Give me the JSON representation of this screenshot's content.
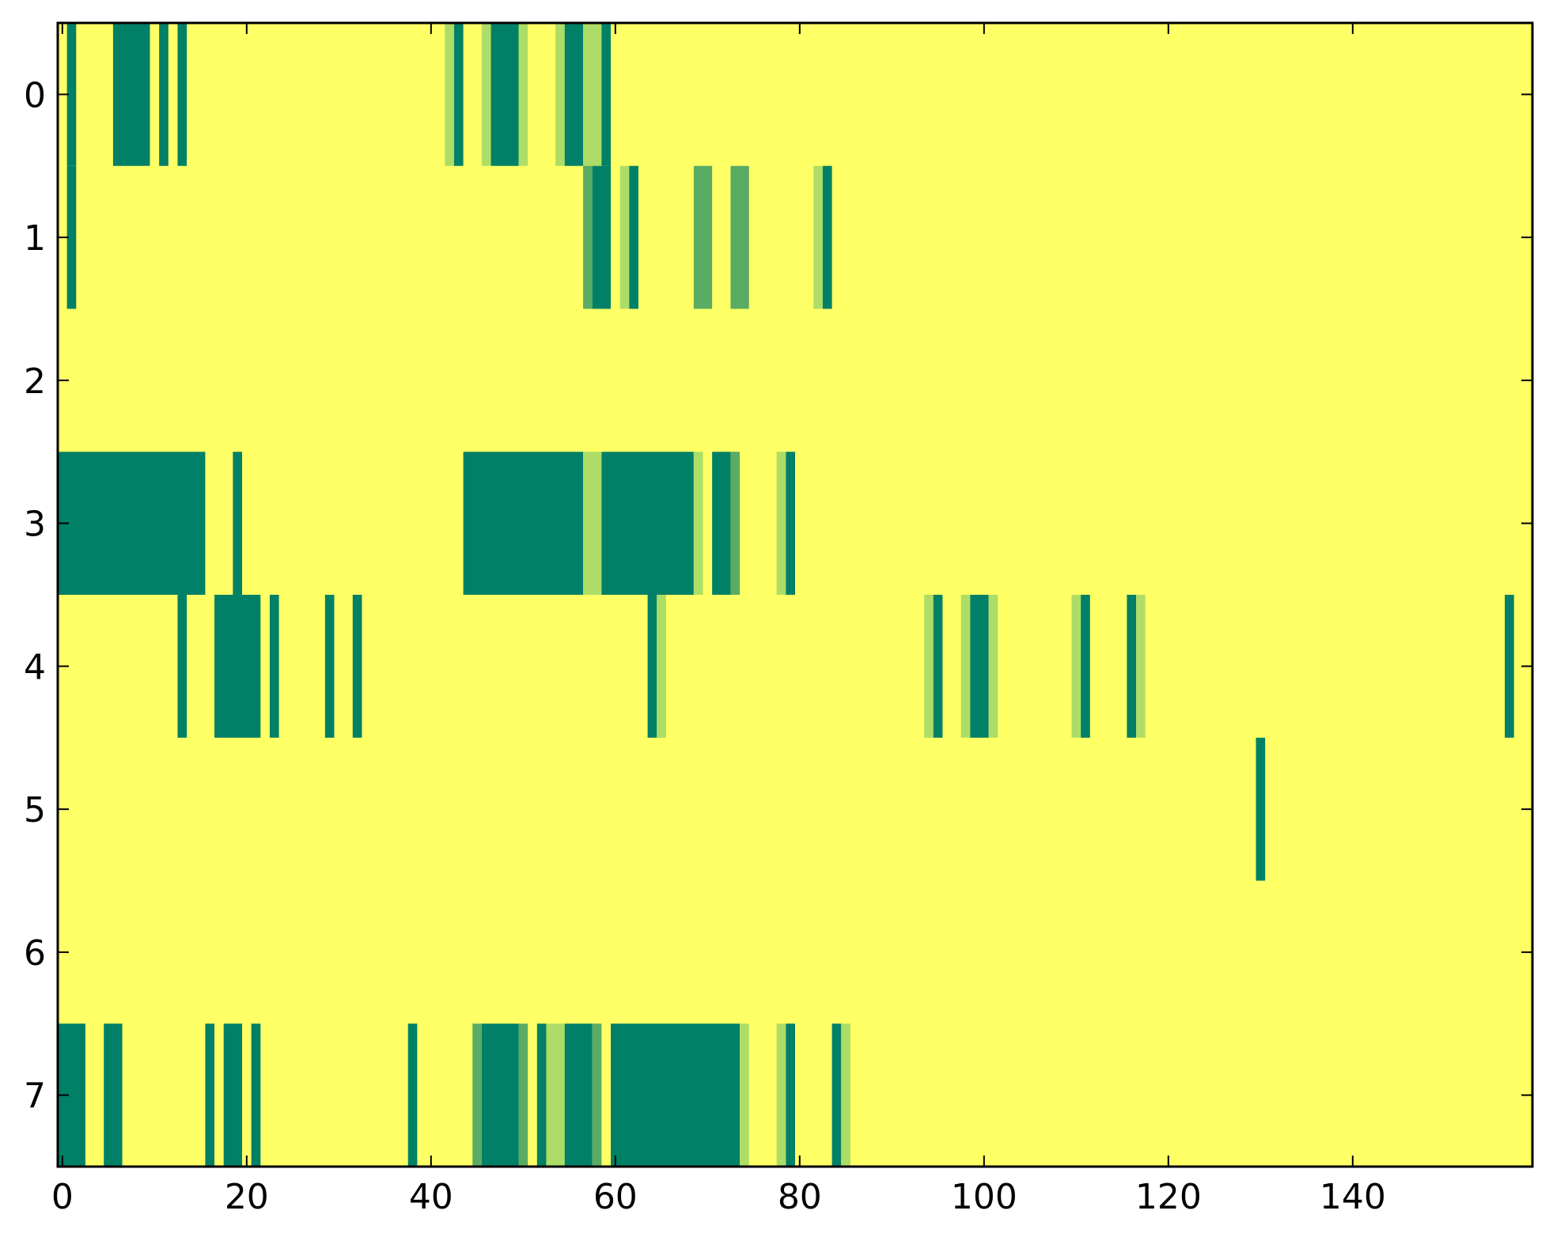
{
  "chart_data": {
    "type": "heatmap",
    "title": "",
    "xlabel": "",
    "ylabel": "",
    "xlim": [
      -0.5,
      159.5
    ],
    "ylim": [
      7.5,
      -0.5
    ],
    "x_ticks": [
      0,
      20,
      40,
      60,
      80,
      100,
      120,
      140
    ],
    "x_tick_labels": [
      "0",
      "20",
      "40",
      "60",
      "80",
      "100",
      "120",
      "140"
    ],
    "y_ticks": [
      0,
      1,
      2,
      3,
      4,
      5,
      6,
      7
    ],
    "y_tick_labels": [
      "0",
      "1",
      "2",
      "3",
      "4",
      "5",
      "6",
      "7"
    ],
    "grid": false,
    "background_value": 0,
    "colormap": {
      "0": "#ffff66",
      "1": "#addd66",
      "2": "#5aac64",
      "3": "#008066"
    },
    "columns": 160,
    "rows": [
      {
        "row": 0,
        "segments": [
          [
            1,
            1,
            3
          ],
          [
            6,
            9,
            3
          ],
          [
            11,
            11,
            3
          ],
          [
            13,
            13,
            3
          ],
          [
            42,
            42,
            1
          ],
          [
            43,
            43,
            3
          ],
          [
            46,
            46,
            1
          ],
          [
            47,
            49,
            3
          ],
          [
            50,
            50,
            1
          ],
          [
            54,
            54,
            1
          ],
          [
            55,
            56,
            3
          ],
          [
            57,
            58,
            1
          ],
          [
            59,
            59,
            3
          ]
        ]
      },
      {
        "row": 1,
        "segments": [
          [
            1,
            1,
            3
          ],
          [
            57,
            57,
            2
          ],
          [
            58,
            59,
            3
          ],
          [
            61,
            61,
            1
          ],
          [
            62,
            62,
            3
          ],
          [
            69,
            70,
            2
          ],
          [
            73,
            74,
            2
          ],
          [
            82,
            82,
            1
          ],
          [
            83,
            83,
            3
          ]
        ]
      },
      {
        "row": 2,
        "segments": []
      },
      {
        "row": 3,
        "segments": [
          [
            -0.5,
            15,
            3
          ],
          [
            19,
            19,
            3
          ],
          [
            44,
            56,
            3
          ],
          [
            57,
            58,
            1
          ],
          [
            59,
            68,
            3
          ],
          [
            69,
            69,
            1
          ],
          [
            71,
            72,
            3
          ],
          [
            73,
            73,
            2
          ],
          [
            78,
            78,
            1
          ],
          [
            79,
            79,
            3
          ]
        ]
      },
      {
        "row": 4,
        "segments": [
          [
            13,
            13,
            3
          ],
          [
            17,
            21,
            3
          ],
          [
            23,
            23,
            3
          ],
          [
            29,
            29,
            3
          ],
          [
            32,
            32,
            3
          ],
          [
            64,
            64,
            3
          ],
          [
            65,
            65,
            1
          ],
          [
            94,
            94,
            1
          ],
          [
            95,
            95,
            3
          ],
          [
            98,
            98,
            1
          ],
          [
            99,
            100,
            3
          ],
          [
            101,
            101,
            1
          ],
          [
            110,
            110,
            1
          ],
          [
            111,
            111,
            3
          ],
          [
            116,
            116,
            3
          ],
          [
            117,
            117,
            1
          ],
          [
            157,
            157,
            3
          ]
        ]
      },
      {
        "row": 5,
        "segments": [
          [
            130,
            130,
            3
          ]
        ]
      },
      {
        "row": 6,
        "segments": []
      },
      {
        "row": 7,
        "segments": [
          [
            -0.5,
            2,
            3
          ],
          [
            5,
            6,
            3
          ],
          [
            16,
            16,
            3
          ],
          [
            18,
            19,
            3
          ],
          [
            21,
            21,
            3
          ],
          [
            38,
            38,
            3
          ],
          [
            45,
            45,
            2
          ],
          [
            46,
            49,
            3
          ],
          [
            50,
            50,
            2
          ],
          [
            52,
            52,
            3
          ],
          [
            53,
            54,
            1
          ],
          [
            55,
            57,
            3
          ],
          [
            58,
            58,
            2
          ],
          [
            60,
            73,
            3
          ],
          [
            74,
            74,
            1
          ],
          [
            78,
            78,
            1
          ],
          [
            79,
            79,
            3
          ],
          [
            84,
            84,
            3
          ],
          [
            85,
            85,
            1
          ]
        ]
      }
    ]
  }
}
